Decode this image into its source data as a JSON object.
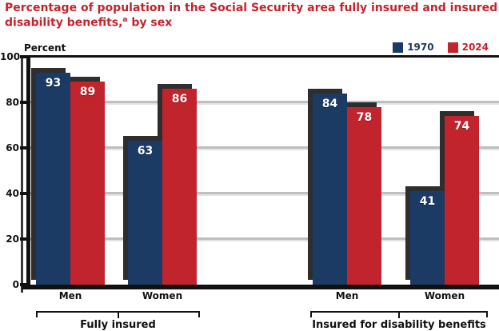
{
  "title": {
    "full_text": "Percentage of population in the Social Security area fully insured and insured for disability benefits, by sex",
    "line1": "Percentage of population in the Social Security area fully insured and insured for",
    "line2_pre": "disability benefits,",
    "footnote": "a",
    "line2_post": " by sex",
    "color": "#c2242e"
  },
  "legend": [
    {
      "label": "1970",
      "color": "#1b3a64"
    },
    {
      "label": "2024",
      "color": "#c2242e"
    }
  ],
  "y_axis": {
    "label": "Percent",
    "ticks": [
      100,
      80,
      60,
      40,
      20,
      0
    ]
  },
  "x_axis": {
    "category_labels": [
      "Men",
      "Women",
      "Men",
      "Women"
    ],
    "group_labels": [
      "Fully insured",
      "Insured for disability benefits"
    ]
  },
  "chart_data": {
    "type": "bar",
    "title": "Percentage of population in the Social Security area fully insured and insured for disability benefits, by sex",
    "groups": [
      "Fully insured",
      "Insured for disability benefits"
    ],
    "categories": [
      "Men",
      "Women",
      "Men",
      "Women"
    ],
    "series": [
      {
        "name": "1970",
        "color": "#1b3a64",
        "values": [
          93,
          63,
          84,
          41
        ]
      },
      {
        "name": "2024",
        "color": "#c2242e",
        "values": [
          89,
          86,
          78,
          74
        ]
      }
    ],
    "ylabel": "Percent",
    "ylim": [
      0,
      100
    ],
    "grid": true,
    "legend_position": "top-right",
    "bar_value_labels": true
  },
  "colors": {
    "bar_blue": "#1b3a64",
    "bar_red": "#c2242e",
    "bar_shadow": "#2e2e2e",
    "axis_black": "#111111",
    "gridline_gray": "#bfbfbf",
    "title_red": "#c2242e",
    "value_label_text": "#ffffff"
  }
}
